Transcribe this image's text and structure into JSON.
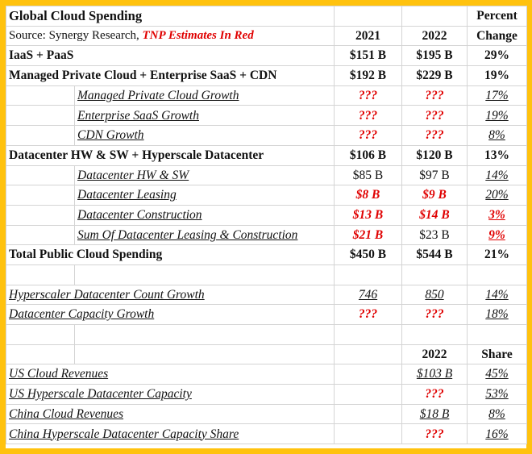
{
  "header": {
    "title": "Global Cloud Spending",
    "percent_label": "Percent",
    "source_text": "Source: Synergy Research, ",
    "source_highlight": "TNP Estimates In Red",
    "year1": "2021",
    "year2": "2022",
    "change_label": "Change"
  },
  "rows": [
    {
      "label": "IaaS + PaaS",
      "y2021": "$151 B",
      "y2022": "$195 B",
      "change": "29%"
    },
    {
      "label": "Managed Private Cloud + Enterprise SaaS + CDN",
      "y2021": "$192 B",
      "y2022": "$229 B",
      "change": "19%"
    },
    {
      "label": "Managed Private Cloud Growth",
      "y2021": "???",
      "y2022": "???",
      "change": "17%"
    },
    {
      "label": "Enterprise SaaS Growth",
      "y2021": "???",
      "y2022": "???",
      "change": "19%"
    },
    {
      "label": "CDN Growth",
      "y2021": "???",
      "y2022": "???",
      "change": "8%"
    },
    {
      "label": "Datacenter HW & SW + Hyperscale Datacenter",
      "y2021": "$106 B",
      "y2022": "$120 B",
      "change": "13%"
    },
    {
      "label": "Datacenter HW & SW",
      "y2021": "$85 B",
      "y2022": "$97 B",
      "change": "14%"
    },
    {
      "label": "Datacenter Leasing",
      "y2021": "$8 B",
      "y2022": "$9 B",
      "change": "20%"
    },
    {
      "label": "Datacenter Construction",
      "y2021": "$13 B",
      "y2022": "$14 B",
      "change": "3%"
    },
    {
      "label": "Sum Of Datacenter Leasing & Construction",
      "y2021": "$21 B",
      "y2022": "$23 B",
      "change": "9%"
    },
    {
      "label": "Total Public Cloud Spending",
      "y2021": "$450 B",
      "y2022": "$544 B",
      "change": "21%"
    },
    {
      "label": "Hyperscaler Datacenter Count Growth",
      "y2021": "746",
      "y2022": "850",
      "change": "14%"
    },
    {
      "label": "Datacenter Capacity Growth",
      "y2021": "???",
      "y2022": "???",
      "change": "18%"
    }
  ],
  "share_header": {
    "year": "2022",
    "share": "Share"
  },
  "share_rows": [
    {
      "label": "US Cloud Revenues",
      "y2022": "$103 B",
      "share": "45%"
    },
    {
      "label": "US Hyperscale Datacenter Capacity",
      "y2022": "???",
      "share": "53%"
    },
    {
      "label": "China Cloud Revenues",
      "y2022": "$18 B",
      "share": "8%"
    },
    {
      "label": "China Hyperscale Datacenter Capacity Share",
      "y2022": "???",
      "share": "16%"
    }
  ],
  "colors": {
    "border": "#FFC20E",
    "estimate_red": "#e00000"
  }
}
